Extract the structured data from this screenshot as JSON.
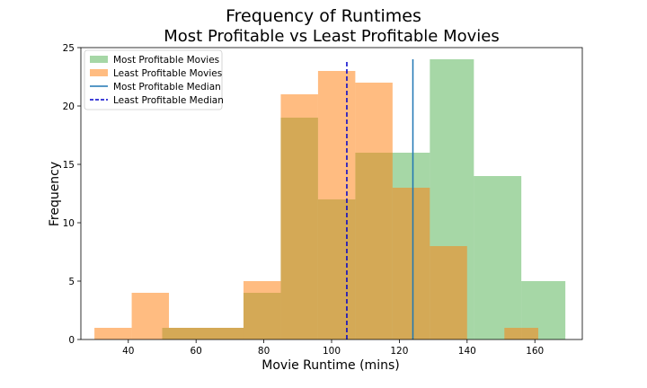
{
  "chart_data": {
    "type": "histogram",
    "title": "Frequency of Runtimes",
    "subtitle": "Most Profitable vs Least Profitable Movies",
    "xlabel": "Movie Runtime (mins)",
    "ylabel": "Frequency",
    "xlim": [
      26,
      174
    ],
    "ylim": [
      0,
      25
    ],
    "xticks": [
      40,
      60,
      80,
      100,
      120,
      140,
      160
    ],
    "yticks": [
      0,
      5,
      10,
      15,
      20,
      25
    ],
    "grid": false,
    "legend_position": "top-left",
    "series": [
      {
        "name": "Most Profitable Movies",
        "kind": "histogram",
        "color": "#2ca02c",
        "alpha": 0.42,
        "bins": [
          {
            "x0": 50,
            "x1": 74,
            "count": 1
          },
          {
            "x0": 74,
            "x1": 85,
            "count": 4
          },
          {
            "x0": 85,
            "x1": 96,
            "count": 19
          },
          {
            "x0": 96,
            "x1": 107,
            "count": 12
          },
          {
            "x0": 107,
            "x1": 118,
            "count": 16
          },
          {
            "x0": 118,
            "x1": 129,
            "count": 16
          },
          {
            "x0": 129,
            "x1": 142,
            "count": 24
          },
          {
            "x0": 142,
            "x1": 156,
            "count": 14
          },
          {
            "x0": 156,
            "x1": 169,
            "count": 5
          }
        ]
      },
      {
        "name": "Least Profitable Movies",
        "kind": "histogram",
        "color": "#ff7f0e",
        "alpha": 0.52,
        "bins": [
          {
            "x0": 30,
            "x1": 41,
            "count": 1
          },
          {
            "x0": 41,
            "x1": 52,
            "count": 4
          },
          {
            "x0": 52,
            "x1": 63,
            "count": 1
          },
          {
            "x0": 63,
            "x1": 74,
            "count": 1
          },
          {
            "x0": 74,
            "x1": 85,
            "count": 5
          },
          {
            "x0": 85,
            "x1": 96,
            "count": 21
          },
          {
            "x0": 96,
            "x1": 107,
            "count": 23
          },
          {
            "x0": 107,
            "x1": 118,
            "count": 22
          },
          {
            "x0": 118,
            "x1": 129,
            "count": 13
          },
          {
            "x0": 129,
            "x1": 140,
            "count": 8
          },
          {
            "x0": 140,
            "x1": 151,
            "count": 0
          },
          {
            "x0": 151,
            "x1": 161,
            "count": 1
          }
        ]
      }
    ],
    "medians": [
      {
        "name": "Most Profitable Median",
        "x": 124,
        "y_top": 24,
        "color": "#1f77b4",
        "style": "solid"
      },
      {
        "name": "Least Profitable Median",
        "x": 104.5,
        "y_top": 24,
        "color": "#0000cc",
        "style": "dashed"
      }
    ]
  }
}
